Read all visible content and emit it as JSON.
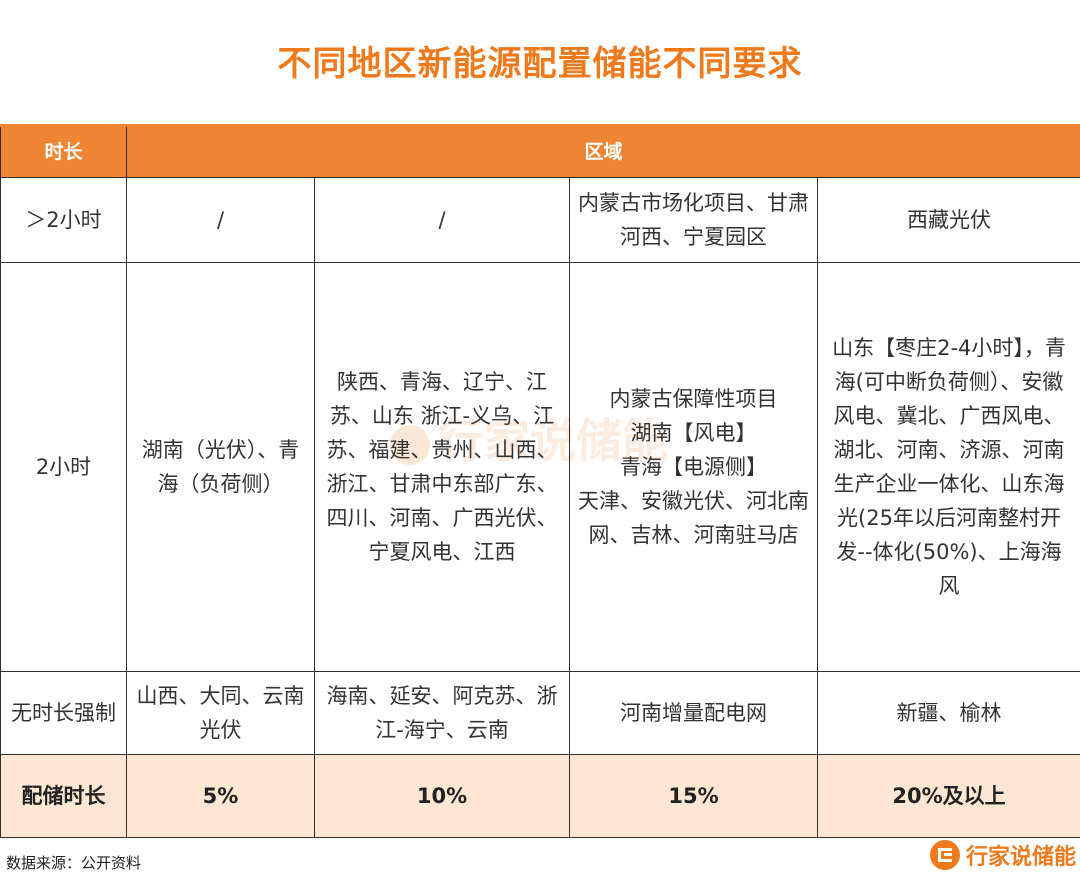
{
  "title": "不同地区新能源配置储能不同要求",
  "watermark": "行家说储能",
  "table": {
    "header": {
      "duration": "时长",
      "region": "区域"
    },
    "rows": [
      {
        "label": "＞2小时",
        "cells": [
          "/",
          "/",
          "内蒙古市场化项目、甘肃河西、宁夏园区",
          "西藏光伏"
        ]
      },
      {
        "label": "2小时",
        "cells": [
          "湖南（光伏）、青海（负荷侧）",
          "陕西、青海、辽宁、江苏、山东 浙江-义乌、江苏、福建、贵州、山西、浙江、甘肃中东部广东、四川、河南、广西光伏、宁夏风电、江西",
          "内蒙古保障性项目\n湖南【风电】\n青海【电源侧】\n天津、安徽光伏、河北南网、吉林、河南驻马店",
          "山东【枣庄2-4小时】，青海(可中断负荷侧）、安徽风电、冀北、广西风电、湖北、河南、济源、河南生产企业一体化、山东海光(25年以后河南整村开发--体化(50%)、上海海风"
        ]
      },
      {
        "label": "无时长强制",
        "cells": [
          "山西、大同、云南光伏",
          "海南、延安、阿克苏、浙江-海宁、云南",
          "河南增量配电网",
          "新疆、榆林"
        ]
      }
    ],
    "footer_row": {
      "label": "配储时长",
      "cells": [
        "5%",
        "10%",
        "15%",
        "20%及以上"
      ]
    }
  },
  "source": "数据来源：公开资料",
  "brand": {
    "name": "行家说储能",
    "color": "#ef7a1c"
  },
  "colors": {
    "accent": "#ef8533",
    "footer_row_bg": "#fde7d2",
    "title": "#ef7a1c"
  }
}
